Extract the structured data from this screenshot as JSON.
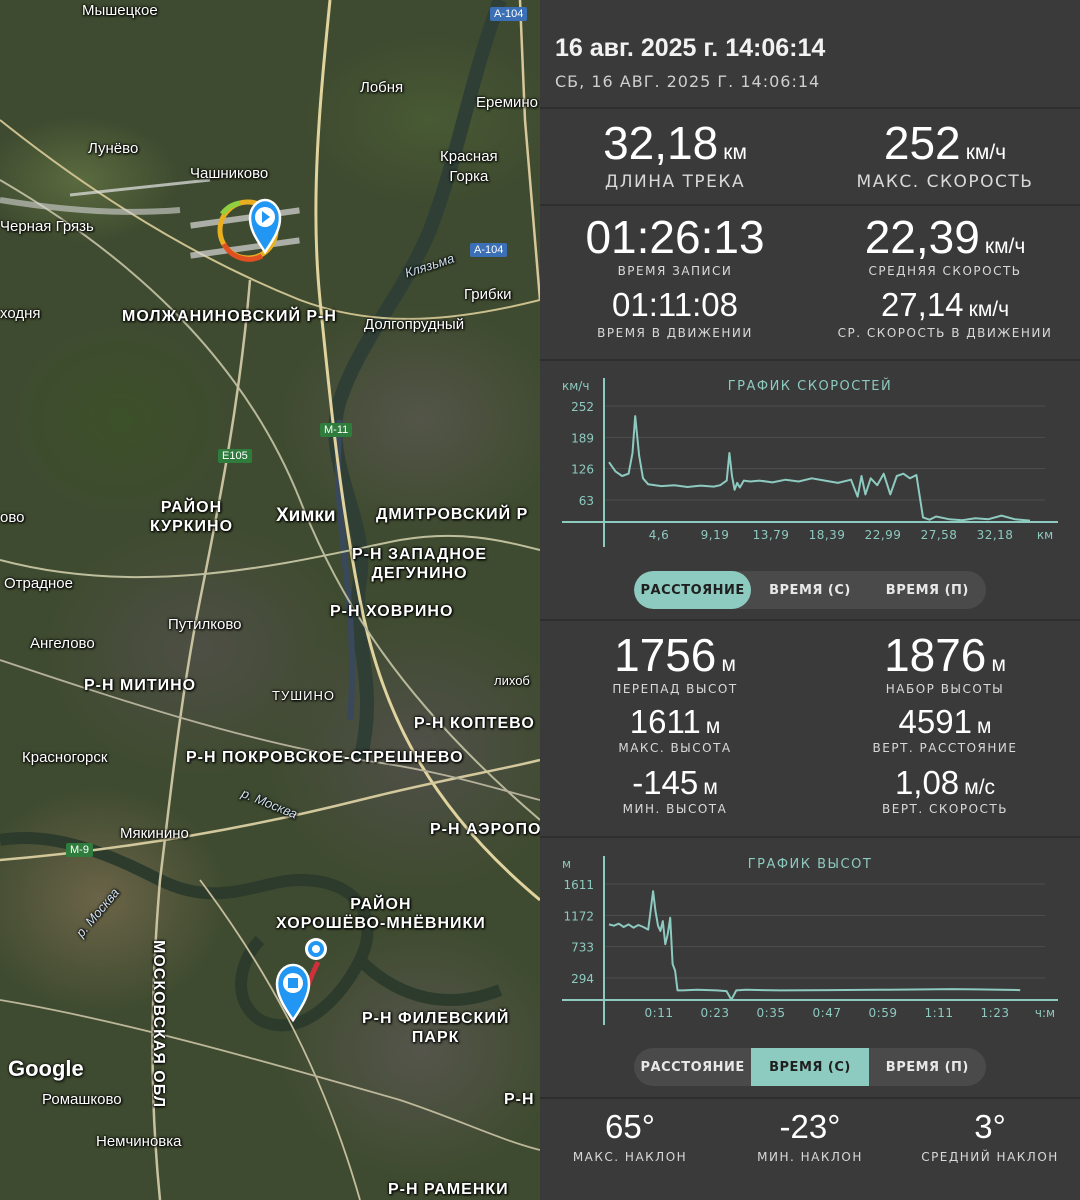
{
  "map": {
    "labels": {
      "myshetskoe": "Мышецкое",
      "lobnya": "Лобня",
      "eremino": "Еремино",
      "lunevo": "Лунёво",
      "chashnikovo": "Чашниково",
      "krasnaya_gorka": "Красная\nГорка",
      "chernaya_gryaz": "Черная Грязь",
      "klyazma": "Клязьма",
      "gribki": "Грибки",
      "vhodnya": "ходня",
      "molzhaninovsky": "МОЛЖАНИНОВСКИЙ Р-Н",
      "dolgoprudny": "Долгопрудный",
      "kurkino": "РАЙОН\nКУРКИНО",
      "khimki": "Химки",
      "dmitrovsky": "ДМИТРОВСКИЙ Р",
      "ovo": "ово",
      "zapadnoe_degunino": "Р-Н ЗАПАДНОЕ\nДЕГУНИНО",
      "otradnoe": "Отрадное",
      "hovrino": "Р-Н ХОВРИНО",
      "putilkovo": "Путилково",
      "angelovo": "Ангелово",
      "mitino": "Р-Н МИТИНО",
      "tushino": "ТУШИНО",
      "lihobory": "лихоб",
      "koptevo": "Р-Н КОПТЕВО",
      "krasnogorsk": "Красногорск",
      "pokrovskoe": "Р-Н ПОКРОВСКОЕ-СТРЕШНЕВО",
      "r_moskva": "р. Москва",
      "myakinino": "Мякинино",
      "aeroport": "Р-Н АЭРОПО",
      "r_moskva2": "р. Москва",
      "khoroshevo": "РАЙОН\nХОРОШЁВО-МНЁВНИКИ",
      "moskovskaya_obl": "МОСКОВСКАЯ ОБЛ",
      "filevsky": "Р-Н ФИЛЕВСКИЙ\nПАРК",
      "romashkovo": "Ромашково",
      "nemchinovka": "Немчиновка",
      "r_n": "Р-Н",
      "ramenki": "Р-Н РАМЕНКИ",
      "google": "Google"
    },
    "shields": {
      "a104_top": "А-104",
      "a104_mid": "А-104",
      "m11": "М-11",
      "e105": "E105",
      "m9": "М-9"
    }
  },
  "header": {
    "title": "16 авг. 2025 г. 14:06:14",
    "subtitle": "СБ, 16 АВГ. 2025 Г. 14:06:14"
  },
  "stats": {
    "track_length": {
      "value": "32,18",
      "unit": "км",
      "label": "ДЛИНА ТРЕКА"
    },
    "max_speed": {
      "value": "252",
      "unit": "км/ч",
      "label": "МАКС. СКОРОСТЬ"
    },
    "record_time": {
      "value": "01:26:13",
      "label": "ВРЕМЯ ЗАПИСИ"
    },
    "avg_speed": {
      "value": "22,39",
      "unit": "км/ч",
      "label": "СРЕДНЯЯ СКОРОСТЬ"
    },
    "moving_time": {
      "value": "01:11:08",
      "label": "ВРЕМЯ В ДВИЖЕНИИ"
    },
    "avg_moving_speed": {
      "value": "27,14",
      "unit": "км/ч",
      "label": "СР. СКОРОСТЬ В ДВИЖЕНИИ"
    }
  },
  "elevation": {
    "diff": {
      "value": "1756",
      "unit": "м",
      "label": "ПЕРЕПАД ВЫСОТ"
    },
    "gain": {
      "value": "1876",
      "unit": "м",
      "label": "НАБОР ВЫСОТЫ"
    },
    "max": {
      "value": "1611",
      "unit": "м",
      "label": "МАКС. ВЫСОТА"
    },
    "vert_dist": {
      "value": "4591",
      "unit": "м",
      "label": "ВЕРТ. РАССТОЯНИЕ"
    },
    "min": {
      "value": "-145",
      "unit": "м",
      "label": "МИН. ВЫСОТА"
    },
    "vert_speed": {
      "value": "1,08",
      "unit": "м/с",
      "label": "ВЕРТ. СКОРОСТЬ"
    }
  },
  "slope": {
    "max": {
      "value": "65°",
      "label": "МАКС. НАКЛОН"
    },
    "min": {
      "value": "-23°",
      "label": "МИН. НАКЛОН"
    },
    "avg": {
      "value": "3°",
      "label": "СРЕДНИЙ НАКЛОН"
    }
  },
  "toggles": {
    "speed_chart": {
      "options": [
        "РАССТОЯНИЕ",
        "ВРЕМЯ (С)",
        "ВРЕМЯ (П)"
      ],
      "selected": "РАССТОЯНИЕ"
    },
    "elevation_chart": {
      "options": [
        "РАССТОЯНИЕ",
        "ВРЕМЯ (С)",
        "ВРЕМЯ (П)"
      ],
      "selected": "ВРЕМЯ (С)"
    }
  },
  "colors": {
    "accent": "#8dcabf",
    "panel_bg": "#3a3a3a",
    "line": "#8dcabf",
    "track_red": "#d0303a",
    "marker_blue": "#2196f3"
  },
  "chart_data": [
    {
      "type": "line",
      "title": "ГРАФИК СКОРОСТЕЙ",
      "ylabel": "км/ч",
      "xlabel": "км",
      "yticks": [
        "252",
        "189",
        "126",
        "63"
      ],
      "xticks": [
        "4,6",
        "9,19",
        "13,79",
        "18,39",
        "22,99",
        "27,58",
        "32,18"
      ],
      "ylim": [
        0,
        252
      ],
      "xlim": [
        0,
        32.18
      ],
      "x": [
        0,
        0.5,
        1.0,
        1.5,
        1.8,
        2.0,
        2.3,
        2.6,
        3.0,
        4.0,
        5.0,
        6.0,
        7.0,
        8.0,
        8.5,
        9.0,
        9.2,
        9.4,
        9.6,
        9.8,
        10.0,
        10.3,
        10.8,
        11.5,
        12.5,
        13.5,
        14.5,
        15.5,
        16.5,
        17.5,
        18.5,
        19.0,
        19.3,
        19.6,
        20.0,
        20.5,
        21.0,
        21.5,
        22.0,
        22.5,
        23.0,
        23.5,
        24.0,
        24.5,
        25.0,
        26.0,
        27.0,
        28.0,
        29.0,
        30.0,
        31.0,
        32.18
      ],
      "y": [
        130,
        110,
        100,
        105,
        150,
        230,
        145,
        95,
        82,
        78,
        80,
        76,
        79,
        77,
        80,
        90,
        150,
        100,
        70,
        85,
        75,
        90,
        88,
        90,
        86,
        92,
        88,
        95,
        90,
        85,
        92,
        55,
        100,
        60,
        95,
        80,
        105,
        60,
        100,
        105,
        95,
        102,
        10,
        5,
        12,
        6,
        4,
        8,
        6,
        14,
        6,
        3
      ]
    },
    {
      "type": "line",
      "title": "ГРАФИК ВЫСОТ",
      "ylabel": "м",
      "xlabel": "ч:м",
      "yticks": [
        "1611",
        "1172",
        "733",
        "294"
      ],
      "xticks": [
        "0:11",
        "0:23",
        "0:35",
        "0:47",
        "0:59",
        "1:11",
        "1:23"
      ],
      "ylim": [
        -145,
        1611
      ],
      "xlim": [
        0,
        86
      ],
      "x": [
        0,
        1,
        2,
        3,
        4,
        5,
        6,
        7,
        8,
        9,
        9.5,
        10,
        10.5,
        11,
        11.5,
        12,
        12.5,
        13,
        13.5,
        14,
        15,
        18,
        22,
        24,
        25,
        26,
        28,
        35,
        45,
        55,
        65,
        70,
        75,
        80,
        84
      ],
      "y": [
        1000,
        980,
        1010,
        960,
        1000,
        950,
        990,
        960,
        920,
        1500,
        1200,
        980,
        900,
        1050,
        700,
        850,
        1100,
        400,
        300,
        0,
        0,
        10,
        0,
        -10,
        -140,
        0,
        10,
        0,
        5,
        10,
        15,
        20,
        15,
        10,
        5
      ]
    }
  ]
}
